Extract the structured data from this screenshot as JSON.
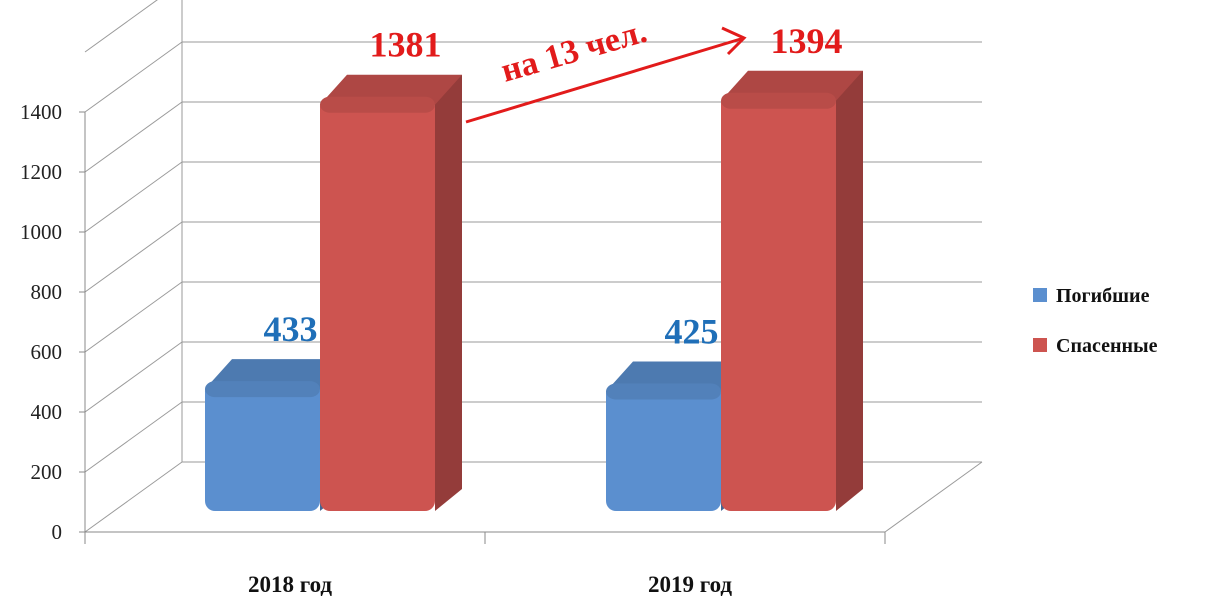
{
  "chart_data": {
    "type": "bar",
    "categories": [
      "2018 год",
      "2019 год"
    ],
    "series": [
      {
        "name": "Погибшие",
        "values": [
          433,
          425
        ],
        "color": "#5b8fcf",
        "label_color": "#1f6fb8"
      },
      {
        "name": "Спасенные",
        "values": [
          1381,
          1394
        ],
        "color": "#cd5450",
        "label_color": "#e21b1b"
      }
    ],
    "y_ticks": [
      "0",
      "200",
      "400",
      "600",
      "800",
      "1000",
      "1200",
      "1400"
    ],
    "ylim": [
      0,
      1600
    ],
    "grid": true,
    "legend_position": "right",
    "annotation": {
      "text": "на 13 чел."
    }
  }
}
